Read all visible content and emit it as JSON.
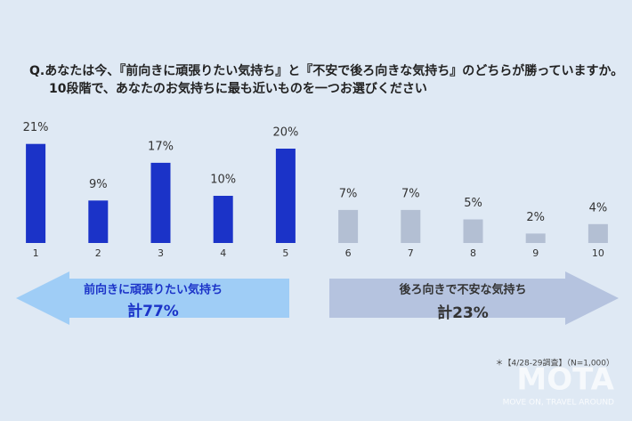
{
  "chart_data": {
    "type": "bar",
    "title": "Q.あなたは今、『前向きに頑張りたい気持ち』と『不安で後ろ向きな気持ち』のどちらが勝っていますか。",
    "subtitle": "10段階で、あなたのお気持ちに最も近いものを一つお選びください",
    "categories": [
      "1",
      "2",
      "3",
      "4",
      "5",
      "6",
      "7",
      "8",
      "9",
      "10"
    ],
    "values": [
      21,
      9,
      17,
      10,
      20,
      7,
      7,
      5,
      2,
      4
    ],
    "value_labels": [
      "21%",
      "9%",
      "17%",
      "10%",
      "20%",
      "7%",
      "7%",
      "5%",
      "2%",
      "4%"
    ],
    "colors": [
      "#1b33c8",
      "#1b33c8",
      "#1b33c8",
      "#1b33c8",
      "#1b33c8",
      "#b3bfd3",
      "#b3bfd3",
      "#b3bfd3",
      "#b3bfd3",
      "#b3bfd3"
    ],
    "annotations": [
      "前向きに頑張りたい気持ち",
      "計77%",
      "後ろ向きで不安な気持ち",
      "計23%",
      "＊【4/28-29調査】（N=1,000）"
    ],
    "watermark": [
      "MOTA",
      "MOVE ON, TRAVEL AROUND"
    ]
  }
}
